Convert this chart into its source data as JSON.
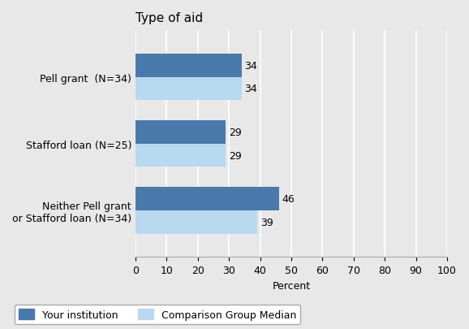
{
  "title": "Type of aid",
  "categories": [
    "Neither Pell grant\nor Stafford loan (N=34)",
    "Stafford loan (N=25)",
    "Pell grant  (N=34)"
  ],
  "institution_values": [
    46,
    29,
    34
  ],
  "comparison_values": [
    39,
    29,
    34
  ],
  "institution_color": "#4A7AAB",
  "comparison_color": "#B8D9F0",
  "bar_height": 0.35,
  "xlim": [
    0,
    100
  ],
  "xticks": [
    0,
    10,
    20,
    30,
    40,
    50,
    60,
    70,
    80,
    90,
    100
  ],
  "xlabel": "Percent",
  "background_color": "#E8E8E8",
  "plot_background_color": "#E8E8E8",
  "grid_color": "#FFFFFF",
  "legend_institution": "Your institution",
  "legend_comparison": "Comparison Group Median",
  "title_fontsize": 11,
  "label_fontsize": 9,
  "tick_fontsize": 9,
  "value_fontsize": 9
}
